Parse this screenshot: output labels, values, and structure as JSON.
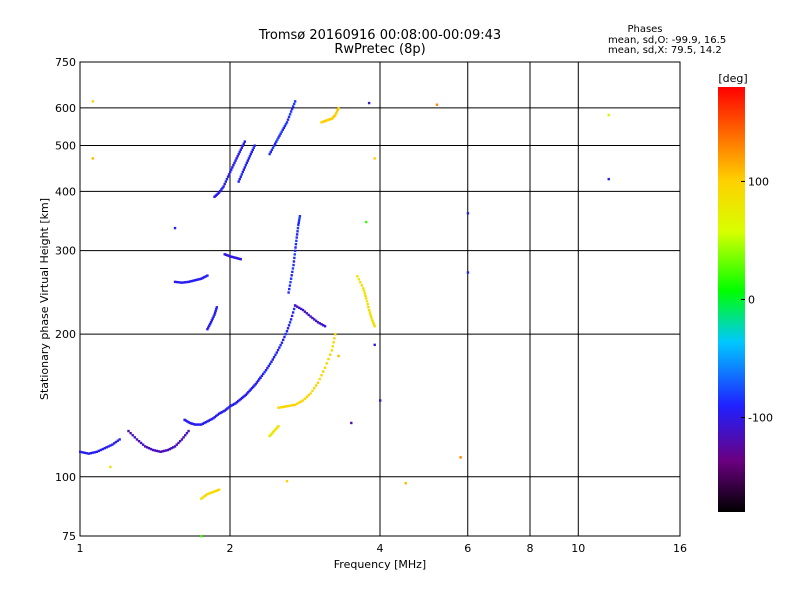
{
  "chart_data": {
    "type": "scatter",
    "title": "Tromsø 20160916 00:08:00-00:09:43",
    "subtitle": "RwPretec (8p)",
    "xlabel": "Frequency [MHz]",
    "ylabel": "Stationary phase Virtual Height [km]",
    "x_scale": "log",
    "y_scale": "log",
    "xlim": [
      1,
      16
    ],
    "ylim": [
      75,
      750
    ],
    "x_ticks": [
      "1",
      "2",
      "4",
      "6",
      "8",
      "10",
      "16"
    ],
    "x_tick_values": [
      1,
      2,
      4,
      6,
      8,
      10,
      16
    ],
    "y_ticks": [
      "75",
      "100",
      "200",
      "300",
      "400",
      "500",
      "600",
      "750"
    ],
    "y_tick_values": [
      75,
      100,
      200,
      300,
      400,
      500,
      600,
      750
    ],
    "grid": true,
    "stats": {
      "heading": "Phases",
      "line1": "mean, sd,O: -99.9, 16.5",
      "line2": "mean, sd,X:  79.5, 14.2"
    },
    "colorbar": {
      "label": "[deg]",
      "range": [
        -180,
        180
      ],
      "ticks": [
        "100",
        "0",
        "-100"
      ],
      "tick_values": [
        100,
        0,
        -100
      ]
    },
    "series": [
      {
        "traces": [
          {
            "x": [
              1.0,
              1.04,
              1.08,
              1.12,
              1.16,
              1.2
            ],
            "y": [
              113,
              112,
              113,
              115,
              117,
              120
            ],
            "phase": -95
          },
          {
            "x": [
              1.25,
              1.3,
              1.35,
              1.4,
              1.45,
              1.5,
              1.55,
              1.6,
              1.65
            ],
            "y": [
              125,
              120,
              116,
              114,
              113,
              114,
              116,
              120,
              125
            ],
            "phase": -115
          },
          {
            "x": [
              1.62,
              1.66,
              1.7,
              1.75,
              1.8,
              1.85,
              1.9,
              1.95,
              2.0,
              2.05,
              2.1,
              2.15,
              2.2,
              2.25,
              2.3
            ],
            "y": [
              132,
              130,
              129,
              129,
              131,
              133,
              136,
              138,
              141,
              143,
              146,
              149,
              153,
              157,
              162
            ],
            "phase": -95
          },
          {
            "x": [
              2.3,
              2.36,
              2.42,
              2.48,
              2.54,
              2.6,
              2.65,
              2.7
            ],
            "y": [
              162,
              168,
              175,
              183,
              192,
              203,
              215,
              230
            ],
            "phase": -90
          },
          {
            "x": [
              2.62,
              2.65,
              2.68,
              2.7,
              2.72,
              2.74,
              2.76
            ],
            "y": [
              245,
              262,
              280,
              300,
              320,
              340,
              355
            ],
            "phase": -85
          },
          {
            "x": [
              1.55,
              1.6,
              1.65,
              1.7,
              1.75,
              1.8
            ],
            "y": [
              258,
              257,
              258,
              260,
              262,
              266
            ],
            "phase": -95
          },
          {
            "x": [
              1.86,
              1.9,
              1.94,
              1.98,
              2.02,
              2.06,
              2.1,
              2.14
            ],
            "y": [
              390,
              398,
              410,
              430,
              450,
              470,
              490,
              510
            ],
            "phase": -95
          },
          {
            "x": [
              2.08,
              2.12,
              2.16,
              2.2,
              2.24
            ],
            "y": [
              420,
              440,
              460,
              480,
              500
            ],
            "phase": -90
          },
          {
            "x": [
              2.4,
              2.45,
              2.5,
              2.55,
              2.6,
              2.65,
              2.7
            ],
            "y": [
              480,
              500,
              520,
              540,
              560,
              590,
              620
            ],
            "phase": -85
          },
          {
            "x": [
              2.7,
              2.8,
              2.9,
              3.0,
              3.1
            ],
            "y": [
              230,
              225,
              218,
              212,
              208
            ],
            "phase": -110
          },
          {
            "x": [
              1.8,
              1.83,
              1.86,
              1.88
            ],
            "y": [
              205,
              212,
              220,
              228
            ],
            "phase": -95
          },
          {
            "x": [
              1.95,
              2.0,
              2.05,
              2.1
            ],
            "y": [
              295,
              292,
              290,
              288
            ],
            "phase": -100
          }
        ]
      },
      {
        "traces": [
          {
            "x": [
              2.5,
              2.6,
              2.7,
              2.8,
              2.9,
              3.0,
              3.1,
              3.2,
              3.25
            ],
            "y": [
              140,
              141,
              142,
              145,
              150,
              158,
              170,
              185,
              200
            ],
            "phase": 95
          },
          {
            "x": [
              3.05,
              3.12,
              3.2,
              3.25,
              3.3
            ],
            "y": [
              560,
              565,
              570,
              580,
              600
            ],
            "phase": 100
          },
          {
            "x": [
              3.6,
              3.7,
              3.75,
              3.8,
              3.85,
              3.9
            ],
            "y": [
              265,
              250,
              238,
              225,
              215,
              208
            ],
            "phase": 85
          },
          {
            "x": [
              2.4,
              2.45,
              2.5
            ],
            "y": [
              122,
              125,
              128
            ],
            "phase": 80
          },
          {
            "x": [
              1.75,
              1.8,
              1.85,
              1.9
            ],
            "y": [
              90,
              92,
              93,
              94
            ],
            "phase": 90
          }
        ]
      }
    ],
    "scattered_points": [
      {
        "x": 1.06,
        "y": 620,
        "phase": 100
      },
      {
        "x": 1.06,
        "y": 470,
        "phase": 110
      },
      {
        "x": 1.15,
        "y": 105,
        "phase": 85
      },
      {
        "x": 1.55,
        "y": 335,
        "phase": -95
      },
      {
        "x": 2.6,
        "y": 98,
        "phase": 95
      },
      {
        "x": 3.8,
        "y": 615,
        "phase": -105
      },
      {
        "x": 3.9,
        "y": 470,
        "phase": 100
      },
      {
        "x": 3.75,
        "y": 345,
        "phase": 20
      },
      {
        "x": 4.0,
        "y": 145,
        "phase": -110
      },
      {
        "x": 4.5,
        "y": 97,
        "phase": 110
      },
      {
        "x": 5.2,
        "y": 610,
        "phase": 130
      },
      {
        "x": 5.8,
        "y": 110,
        "phase": 130
      },
      {
        "x": 6.0,
        "y": 360,
        "phase": -90
      },
      {
        "x": 6.0,
        "y": 270,
        "phase": -90
      },
      {
        "x": 11.5,
        "y": 580,
        "phase": 70
      },
      {
        "x": 11.5,
        "y": 425,
        "phase": -95
      },
      {
        "x": 1.75,
        "y": 75,
        "phase": 20
      },
      {
        "x": 3.5,
        "y": 130,
        "phase": -120
      },
      {
        "x": 3.3,
        "y": 180,
        "phase": 110
      },
      {
        "x": 3.9,
        "y": 190,
        "phase": -100
      }
    ]
  }
}
